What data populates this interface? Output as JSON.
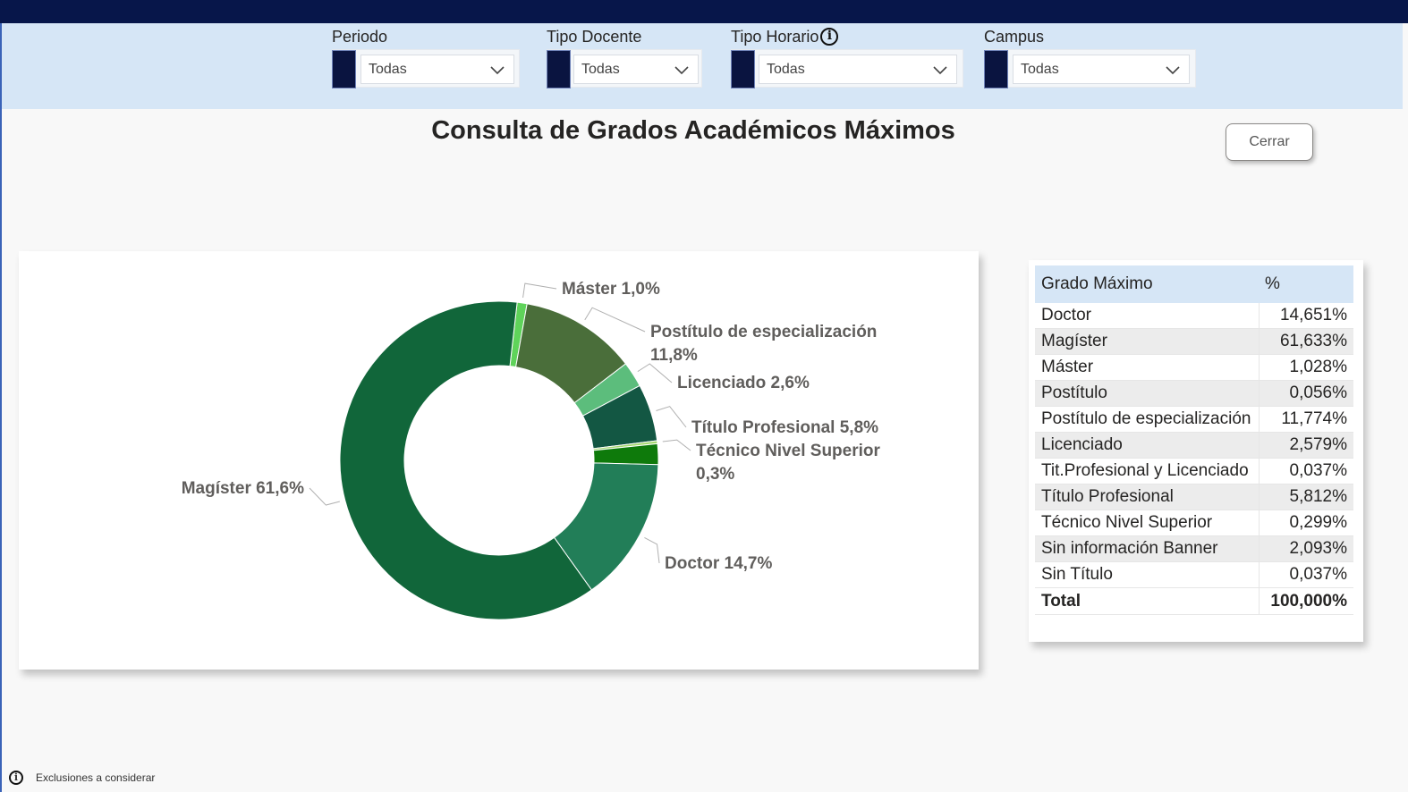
{
  "filters": [
    {
      "label": "Periodo",
      "value": "Todas",
      "info": false
    },
    {
      "label": "Tipo Docente",
      "value": "Todas",
      "info": false
    },
    {
      "label": "Tipo Horario",
      "value": "Todas",
      "info": true
    },
    {
      "label": "Campus",
      "value": "Todas",
      "info": false
    }
  ],
  "info_icon_glyph": "i",
  "page": {
    "title": "Consulta de Grados Académicos Máximos",
    "close_label": "Cerrar",
    "footer_text": "Exclusiones a considerar"
  },
  "chart_data": {
    "type": "pie",
    "donut": true,
    "slices": [
      {
        "label": "Máster",
        "value": 1.0,
        "display": "Máster 1,0%",
        "color": "#5fd35a",
        "show_label": true
      },
      {
        "label": "Postítulo de especialización",
        "value": 11.8,
        "display": "Postítulo de especialización 11,8%",
        "color": "#4a6e3a",
        "show_label": true
      },
      {
        "label": "Licenciado",
        "value": 2.6,
        "display": "Licenciado 2,6%",
        "color": "#5cbd7c",
        "show_label": true
      },
      {
        "label": "Título Profesional",
        "value": 5.8,
        "display": "Título Profesional 5,8%",
        "color": "#135743",
        "show_label": true
      },
      {
        "label": "Técnico Nivel Superior",
        "value": 0.3,
        "display": "Técnico Nivel Superior 0,3%",
        "color": "#a3d86e",
        "show_label": true
      },
      {
        "label": "Sin información Banner",
        "value": 2.1,
        "display": "",
        "color": "#0e7a0b",
        "show_label": false
      },
      {
        "label": "Doctor",
        "value": 14.7,
        "display": "Doctor 14,7%",
        "color": "#227e58",
        "show_label": true
      },
      {
        "label": "Magíster",
        "value": 61.6,
        "display": "Magíster 61,6%",
        "color": "#11663a",
        "show_label": true
      }
    ]
  },
  "table": {
    "headers": [
      "Grado Máximo",
      "%"
    ],
    "rows": [
      [
        "Doctor",
        "14,651%"
      ],
      [
        "Magíster",
        "61,633%"
      ],
      [
        "Máster",
        "1,028%"
      ],
      [
        "Postítulo",
        "0,056%"
      ],
      [
        "Postítulo de especialización",
        "11,774%"
      ],
      [
        "Licenciado",
        "2,579%"
      ],
      [
        "Tit.Profesional y Licenciado",
        "0,037%"
      ],
      [
        "Título Profesional",
        "5,812%"
      ],
      [
        "Técnico Nivel Superior",
        "0,299%"
      ],
      [
        "Sin información Banner",
        "2,093%"
      ],
      [
        "Sin Título",
        "0,037%"
      ]
    ],
    "total": [
      "Total",
      "100,000%"
    ]
  }
}
